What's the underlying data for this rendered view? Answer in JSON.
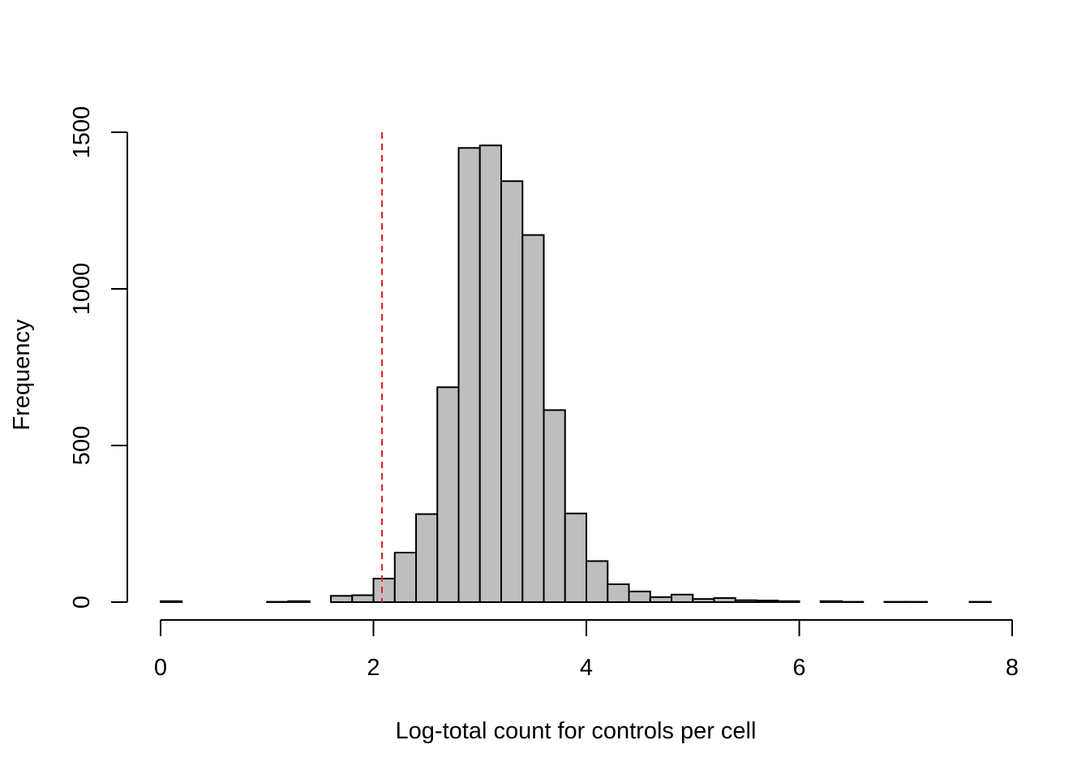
{
  "chart_data": {
    "type": "bar",
    "subtype": "histogram",
    "title": "",
    "xlabel": "Log-total count for controls per cell",
    "ylabel": "Frequency",
    "xlim": [
      0,
      8
    ],
    "ylim": [
      0,
      1500
    ],
    "xticks": [
      0,
      2,
      4,
      6,
      8
    ],
    "yticks": [
      0,
      500,
      1000,
      1500
    ],
    "bin_width": 0.2,
    "bin_edges_start": 0,
    "values": [
      3,
      0,
      0,
      0,
      0,
      1,
      3,
      0,
      20,
      22,
      75,
      158,
      281,
      686,
      1450,
      1458,
      1344,
      1172,
      613,
      283,
      131,
      57,
      34,
      16,
      24,
      10,
      13,
      6,
      5,
      3,
      0,
      3,
      1,
      0,
      1,
      1,
      0,
      0,
      1
    ],
    "grid": false,
    "legend": "none",
    "bar_fill": "#bebebe",
    "bar_stroke": "#000000",
    "reference_line": {
      "x": 2.08,
      "color": "#dd2222",
      "style": "dashed"
    }
  }
}
